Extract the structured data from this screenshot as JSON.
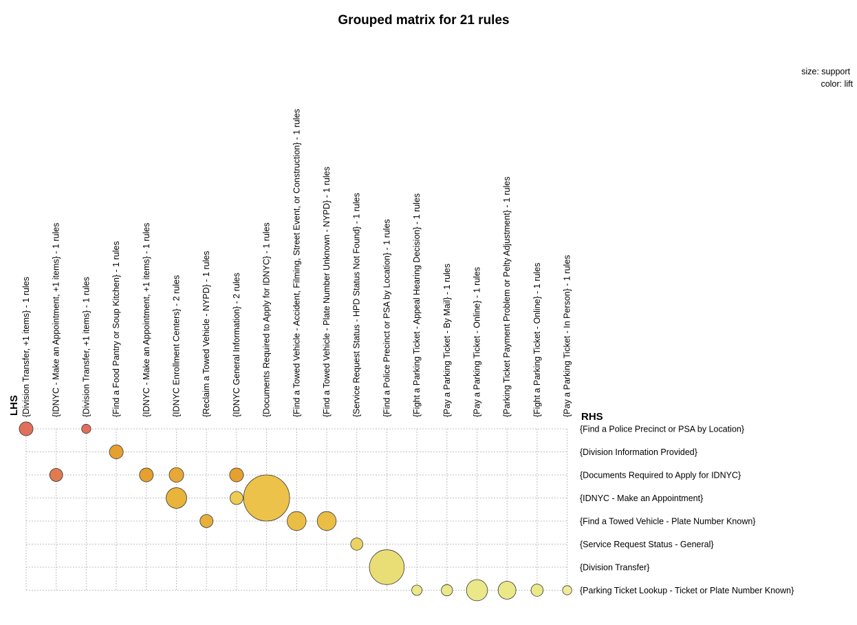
{
  "chart_data": {
    "type": "grouped-matrix",
    "title": "Grouped matrix for 21 rules",
    "legend": {
      "size_label": "size: support",
      "color_label": "color: lift",
      "placement": "top-right"
    },
    "lhs_axis_label": "LHS",
    "rhs_axis_label": "RHS",
    "grid": true,
    "lhs_groups": [
      "{Division Transfer, +1 items} - 1 rules",
      "{IDNYC - Make an Appointment, +1 items} - 1 rules",
      "{Division Transfer, +1 items} - 1 rules",
      "{Find a Food Pantry or Soup Kitchen} - 1 rules",
      "{IDNYC - Make an Appointment, +1 items} - 1 rules",
      "{IDNYC Enrollment Centers} - 2 rules",
      "{Reclaim a Towed Vehicle - NYPD} - 1 rules",
      "{IDNYC General Information} - 2 rules",
      "{Documents Required to Apply for IDNYC} - 1 rules",
      "{Find a Towed Vehicle - Accident, Filming, Street Event, or Construction} - 1 rules",
      "{Find a Towed Vehicle - Plate Number Unknown - NYPD} - 1 rules",
      "{Service Request Status - HPD Status Not Found} - 1 rules",
      "{Find a Police Precinct or PSA by Location} - 1 rules",
      "{Fight a Parking Ticket - Appeal Hearing Decision} - 1 rules",
      "{Pay a Parking Ticket - By Mail} - 1 rules",
      "{Pay a Parking Ticket - Online} - 1 rules",
      "{Parking Ticket Payment Problem or Pelty Adjustment} - 1 rules",
      "{Fight a Parking Ticket - Online} - 1 rules",
      "{Pay a Parking Ticket - In Person} - 1 rules"
    ],
    "rhs_items": [
      "{Find a Police Precinct or PSA by Location}",
      "{Division Information Provided}",
      "{Documents Required to Apply for IDNYC}",
      "{IDNYC - Make an Appointment}",
      "{Find a Towed Vehicle - Plate Number Known}",
      "{Service Request Status - General}",
      "{Division Transfer}",
      "{Parking Ticket Lookup - Ticket or Plate Number Known}"
    ],
    "points": [
      {
        "lhs": 0,
        "rhs": 0,
        "support": 0.09,
        "color": "#e0705a"
      },
      {
        "lhs": 2,
        "rhs": 0,
        "support": 0.04,
        "color": "#e0705a"
      },
      {
        "lhs": 3,
        "rhs": 1,
        "support": 0.09,
        "color": "#e6a030"
      },
      {
        "lhs": 1,
        "rhs": 2,
        "support": 0.08,
        "color": "#e07a50"
      },
      {
        "lhs": 4,
        "rhs": 2,
        "support": 0.09,
        "color": "#e6a030"
      },
      {
        "lhs": 5,
        "rhs": 2,
        "support": 0.1,
        "color": "#e8a838"
      },
      {
        "lhs": 7,
        "rhs": 2,
        "support": 0.09,
        "color": "#e6a030"
      },
      {
        "lhs": 5,
        "rhs": 3,
        "support": 0.2,
        "color": "#e8b43a"
      },
      {
        "lhs": 7,
        "rhs": 3,
        "support": 0.08,
        "color": "#eccc55"
      },
      {
        "lhs": 8,
        "rhs": 3,
        "support": 1.0,
        "color": "#ecc24a"
      },
      {
        "lhs": 6,
        "rhs": 4,
        "support": 0.08,
        "color": "#e8b03a"
      },
      {
        "lhs": 9,
        "rhs": 4,
        "support": 0.17,
        "color": "#eabd45"
      },
      {
        "lhs": 10,
        "rhs": 4,
        "support": 0.17,
        "color": "#eabd45"
      },
      {
        "lhs": 11,
        "rhs": 5,
        "support": 0.07,
        "color": "#ecd262"
      },
      {
        "lhs": 12,
        "rhs": 6,
        "support": 0.57,
        "color": "#e8de75"
      },
      {
        "lhs": 13,
        "rhs": 7,
        "support": 0.05,
        "color": "#eae888"
      },
      {
        "lhs": 14,
        "rhs": 7,
        "support": 0.06,
        "color": "#eae888"
      },
      {
        "lhs": 15,
        "rhs": 7,
        "support": 0.21,
        "color": "#eae888"
      },
      {
        "lhs": 16,
        "rhs": 7,
        "support": 0.15,
        "color": "#eae888"
      },
      {
        "lhs": 17,
        "rhs": 7,
        "support": 0.07,
        "color": "#eae888"
      },
      {
        "lhs": 18,
        "rhs": 7,
        "support": 0.04,
        "color": "#eeec98"
      }
    ]
  }
}
